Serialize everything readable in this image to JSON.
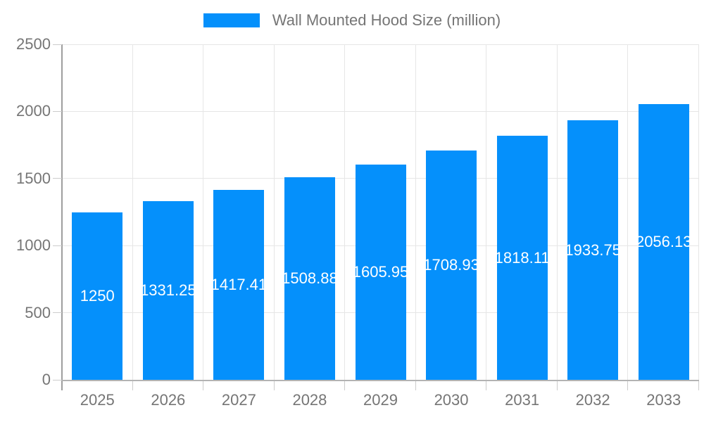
{
  "legend": {
    "label": "Wall Mounted Hood Size (million)"
  },
  "colors": {
    "bar": "#0590fb",
    "grid": "#e6e6e6",
    "tick": "#cccccc",
    "axis_y": "#9e9e9e",
    "axis_x": "#b3b3b3",
    "text": "#757575",
    "bar_label_text": "#ffffff",
    "background": "#ffffff"
  },
  "chart_data": {
    "type": "bar",
    "title": "",
    "legend": [
      "Wall Mounted Hood Size (million)"
    ],
    "legend_position": "top-center",
    "categories": [
      "2025",
      "2026",
      "2027",
      "2028",
      "2029",
      "2030",
      "2031",
      "2032",
      "2033"
    ],
    "values": [
      1250,
      1331.25,
      1417.41,
      1508.88,
      1605.95,
      1708.93,
      1818.11,
      1933.75,
      2056.13
    ],
    "bar_labels": [
      "1250",
      "1331.25",
      "1417.41",
      "1508.88",
      "1605.95",
      "1708.93",
      "1818.11",
      "1933.75",
      "2056.13"
    ],
    "xlabel": "",
    "ylabel": "",
    "ylim": [
      0,
      2500
    ],
    "yticks": [
      0,
      500,
      1000,
      1500,
      2000,
      2500
    ],
    "grid": true,
    "data_label_position": "inside-center"
  }
}
